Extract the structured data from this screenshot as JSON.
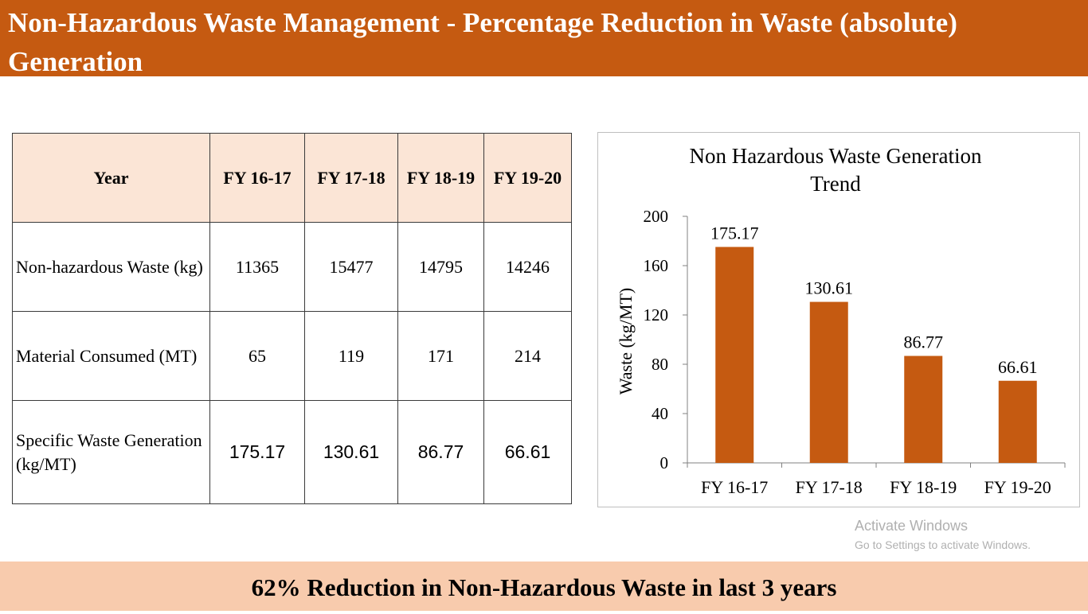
{
  "title": "Non-Hazardous Waste Management - Percentage Reduction in Waste (absolute) Generation",
  "table": {
    "header": [
      "Year",
      "FY 16-17",
      "FY 17-18",
      "FY 18-19",
      "FY 19-20"
    ],
    "rows": [
      {
        "label": "Non-hazardous Waste (kg)",
        "values": [
          "11365",
          "15477",
          "14795",
          "14246"
        ]
      },
      {
        "label": "Material Consumed (MT)",
        "values": [
          "65",
          "119",
          "171",
          "214"
        ]
      },
      {
        "label": "Specific Waste Generation (kg/MT)",
        "values": [
          "175.17",
          "130.61",
          "86.77",
          "66.61"
        ]
      }
    ]
  },
  "chart_data": {
    "type": "bar",
    "title": "Non Hazardous Waste Generation Trend",
    "categories": [
      "FY 16-17",
      "FY 17-18",
      "FY 18-19",
      "FY 19-20"
    ],
    "values": [
      175.17,
      130.61,
      86.77,
      66.61
    ],
    "data_labels": [
      "175.17",
      "130.61",
      "86.77",
      "66.61"
    ],
    "ylabel": "Waste (kg/MT)",
    "xlabel": "",
    "ylim": [
      0,
      200
    ],
    "yticks": [
      0,
      40,
      80,
      120,
      160,
      200
    ],
    "bar_color": "#c55a11",
    "grid": false,
    "legend": "none"
  },
  "watermark": {
    "line1": "Activate Windows",
    "line2": "Go to Settings to activate Windows."
  },
  "footer": "62% Reduction in Non-Hazardous Waste in last 3 years",
  "colors": {
    "title_band": "#c55a11",
    "table_header": "#fbe5d6",
    "footer_band": "#f8cbad"
  }
}
